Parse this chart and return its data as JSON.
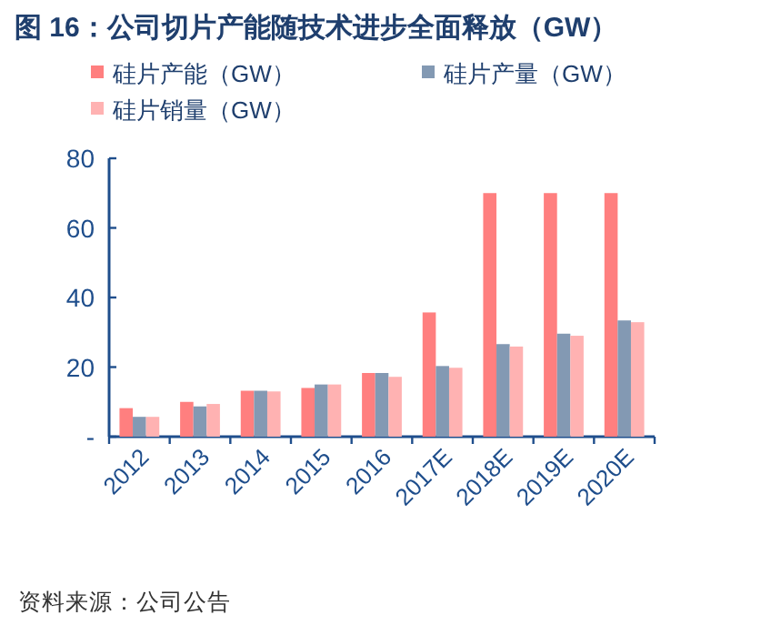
{
  "chart_data": {
    "type": "bar",
    "title": "图 16：公司切片产能随技术进步全面释放（GW）",
    "categories": [
      "2012",
      "2013",
      "2014",
      "2015",
      "2016",
      "2017E",
      "2018E",
      "2019E",
      "2020E"
    ],
    "series": [
      {
        "name": "硅片产能（GW）",
        "color": "#ff7f7f",
        "values": [
          8.2,
          10,
          13.2,
          14,
          18.3,
          35.7,
          70,
          70,
          70
        ]
      },
      {
        "name": "硅片产量（GW）",
        "color": "#8399b3",
        "values": [
          5.7,
          8.7,
          13.2,
          15,
          18.3,
          20.3,
          26.6,
          29.6,
          33.4
        ]
      },
      {
        "name": "硅片销量（GW）",
        "color": "#ffb2b2",
        "values": [
          5.7,
          9.4,
          13,
          15,
          17.2,
          19.8,
          25.9,
          29,
          32.9
        ]
      }
    ],
    "ylim": [
      0,
      80
    ],
    "yticks": [
      {
        "value": 0,
        "label": "-"
      },
      20,
      40,
      60,
      80
    ],
    "grid": false,
    "legend": "top",
    "annotations": [
      "资料来源：公司公告"
    ]
  }
}
